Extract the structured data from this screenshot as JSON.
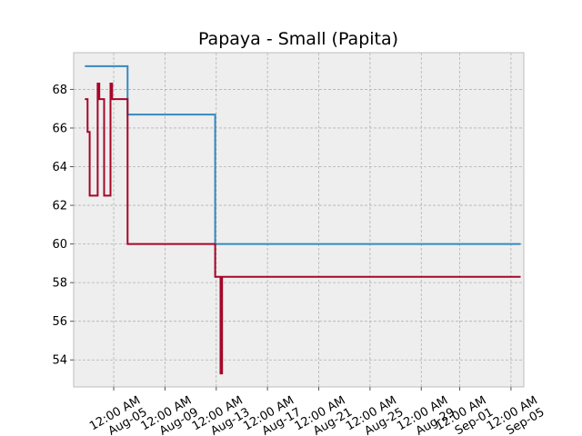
{
  "chart_data": {
    "type": "line",
    "step": true,
    "title": "Papaya - Small (Papita)",
    "xlabel": "",
    "ylabel": "",
    "grid": true,
    "legend": "none",
    "x_axis": "date",
    "xlim": [
      "2023-08-01T21:00",
      "2023-09-06T00:00"
    ],
    "ylim": [
      52.6,
      69.9
    ],
    "y_ticks": [
      54,
      56,
      58,
      60,
      62,
      64,
      66,
      68
    ],
    "x_ticks": [
      {
        "date": "2023-08-05T00:00",
        "label": [
          "12:00 AM",
          "Aug-05"
        ]
      },
      {
        "date": "2023-08-09T00:00",
        "label": [
          "12:00 AM",
          "Aug-09"
        ]
      },
      {
        "date": "2023-08-13T00:00",
        "label": [
          "12:00 AM",
          "Aug-13"
        ]
      },
      {
        "date": "2023-08-17T00:00",
        "label": [
          "12:00 AM",
          "Aug-17"
        ]
      },
      {
        "date": "2023-08-21T00:00",
        "label": [
          "12:00 AM",
          "Aug-21"
        ]
      },
      {
        "date": "2023-08-25T00:00",
        "label": [
          "12:00 AM",
          "Aug-25"
        ]
      },
      {
        "date": "2023-08-29T00:00",
        "label": [
          "12:00 AM",
          "Aug-29"
        ]
      },
      {
        "date": "2023-09-01T00:00",
        "label": [
          "12:00 AM",
          "Sep-01"
        ]
      },
      {
        "date": "2023-09-05T00:00",
        "label": [
          "12:00 AM",
          "Sep-05"
        ]
      }
    ],
    "series": [
      {
        "color": "#348ABD",
        "points": [
          [
            "2023-08-02T18:00",
            69.2
          ],
          [
            "2023-08-06T02:00",
            69.2
          ],
          [
            "2023-08-06T02:00",
            66.7
          ],
          [
            "2023-08-12T22:00",
            66.7
          ],
          [
            "2023-08-12T22:00",
            60.0
          ],
          [
            "2023-09-05T18:00",
            60.0
          ]
        ]
      },
      {
        "color": "#A60628",
        "points": [
          [
            "2023-08-02T18:00",
            67.5
          ],
          [
            "2023-08-02T23:00",
            67.5
          ],
          [
            "2023-08-02T23:00",
            65.8
          ],
          [
            "2023-08-03T03:00",
            65.8
          ],
          [
            "2023-08-03T03:00",
            62.5
          ],
          [
            "2023-08-03T18:00",
            62.5
          ],
          [
            "2023-08-03T18:00",
            68.3
          ],
          [
            "2023-08-03T21:00",
            68.3
          ],
          [
            "2023-08-03T21:00",
            67.5
          ],
          [
            "2023-08-04T06:00",
            67.5
          ],
          [
            "2023-08-04T06:00",
            62.5
          ],
          [
            "2023-08-04T18:00",
            62.5
          ],
          [
            "2023-08-04T18:00",
            68.3
          ],
          [
            "2023-08-04T21:00",
            68.3
          ],
          [
            "2023-08-04T21:00",
            67.5
          ],
          [
            "2023-08-06T02:00",
            67.5
          ],
          [
            "2023-08-06T02:00",
            60.0
          ],
          [
            "2023-08-12T22:00",
            60.0
          ],
          [
            "2023-08-12T22:00",
            58.3
          ],
          [
            "2023-08-13T08:00",
            58.3
          ],
          [
            "2023-08-13T08:00",
            53.3
          ],
          [
            "2023-08-13T11:00",
            53.3
          ],
          [
            "2023-08-13T11:00",
            58.3
          ],
          [
            "2023-09-05T18:00",
            58.3
          ]
        ]
      }
    ]
  }
}
